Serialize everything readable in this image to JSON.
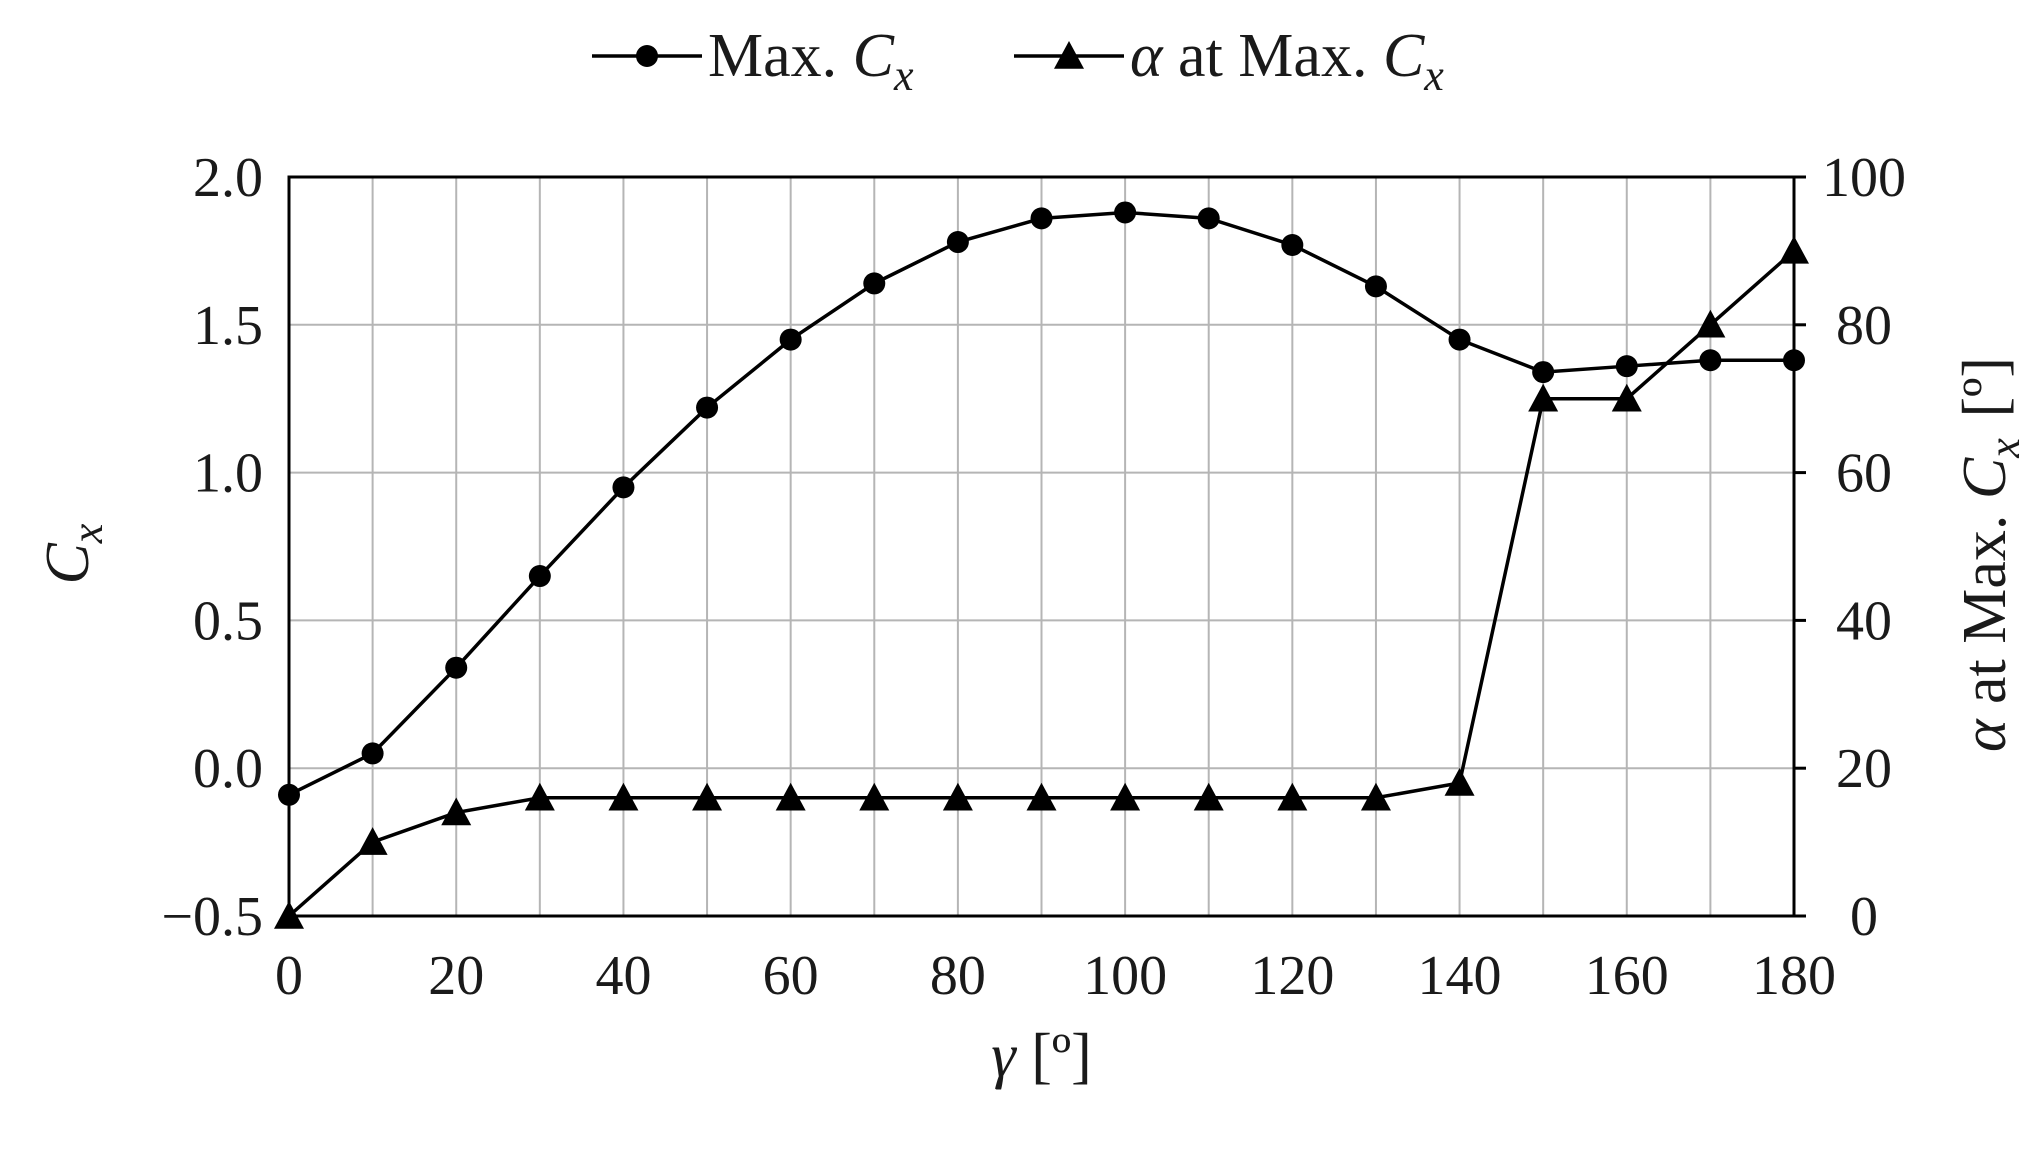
{
  "chart_data": {
    "type": "line",
    "title": "",
    "xlabel": "γ [º]",
    "ylabel_left": "C_x",
    "ylabel_right": "α at Max. C_x [º]",
    "xlim": [
      0,
      180
    ],
    "ylim_left": [
      -0.5,
      2.0
    ],
    "ylim_right": [
      0,
      100
    ],
    "x_ticks": [
      0,
      20,
      40,
      60,
      80,
      100,
      120,
      140,
      160,
      180
    ],
    "x_tick_labels": [
      "0",
      "20",
      "40",
      "60",
      "80",
      "100",
      "120",
      "140",
      "160",
      "180"
    ],
    "y_left_ticks": [
      -0.5,
      0.0,
      0.5,
      1.0,
      1.5,
      2.0
    ],
    "y_left_tick_labels": [
      "−0.5",
      "0.0",
      "0.5",
      "1.0",
      "1.5",
      "2.0"
    ],
    "y_right_ticks": [
      0,
      20,
      40,
      60,
      80,
      100
    ],
    "y_right_tick_labels": [
      "0",
      "20",
      "40",
      "60",
      "80",
      "100"
    ],
    "grid": true,
    "legend_position": "top-center",
    "x": [
      0,
      10,
      20,
      30,
      40,
      50,
      60,
      70,
      80,
      90,
      100,
      110,
      120,
      130,
      140,
      150,
      160,
      170,
      180
    ],
    "series": [
      {
        "name": "Max. C_x",
        "axis": "left",
        "marker": "circle",
        "color": "#000000",
        "values": [
          -0.09,
          0.05,
          0.34,
          0.65,
          0.95,
          1.22,
          1.45,
          1.64,
          1.78,
          1.86,
          1.88,
          1.86,
          1.77,
          1.63,
          1.45,
          1.34,
          1.36,
          1.38,
          1.38
        ]
      },
      {
        "name": "α at Max. C_x",
        "axis": "right",
        "marker": "triangle",
        "color": "#000000",
        "values": [
          0,
          10,
          14,
          16,
          16,
          16,
          16,
          16,
          16,
          16,
          16,
          16,
          16,
          16,
          18,
          70,
          70,
          80,
          90
        ]
      }
    ]
  }
}
